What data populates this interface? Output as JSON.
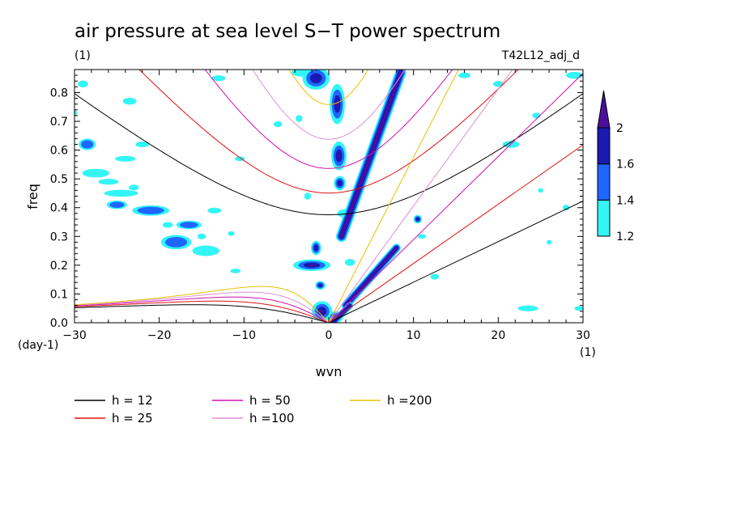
{
  "chart_data": {
    "type": "heatmap",
    "title": "air pressure at sea level S−T power spectrum",
    "subtitle_left": "(1)",
    "subtitle_right": "T42L12_adj_d",
    "xlabel": "wvn",
    "ylabel": "freq",
    "x_unit_label": "(1)",
    "y_unit_label": "(day-1)",
    "xlim": [
      -30,
      30
    ],
    "ylim": [
      0,
      0.88
    ],
    "x_ticks": [
      -30,
      -20,
      -10,
      0,
      10,
      20,
      30
    ],
    "x_tick_labels": [
      "−30",
      "−20",
      "−10",
      "0",
      "10",
      "20",
      "30"
    ],
    "y_ticks": [
      0,
      0.1,
      0.2,
      0.3,
      0.4,
      0.5,
      0.6,
      0.7,
      0.8
    ],
    "y_tick_labels": [
      "0.0",
      "0.1",
      "0.2",
      "0.3",
      "0.4",
      "0.5",
      "0.6",
      "0.7",
      "0.8"
    ],
    "colorbar": {
      "levels": [
        1.2,
        1.4,
        1.6,
        2
      ],
      "labels": [
        "1.2",
        "1.4",
        "1.6",
        "2"
      ],
      "colors": [
        "#33f5f5",
        "#1f66ff",
        "#1a1ab0",
        "#4a0e9e"
      ]
    },
    "series": [
      {
        "name": "h = 12",
        "h": 12,
        "color": "#000000"
      },
      {
        "name": "h = 25",
        "h": 25,
        "color": "#e01010"
      },
      {
        "name": "h = 50",
        "h": 50,
        "color": "#d010b0"
      },
      {
        "name": "h =100",
        "h": 100,
        "color": "#d890d8"
      },
      {
        "name": "h =200",
        "h": 200,
        "color": "#e8c000"
      }
    ],
    "kelvin_slopes": [
      0.0141,
      0.0206,
      0.0289,
      0.0406,
      0.0575
    ],
    "blobs": [
      {
        "x": -29,
        "y": 0.83,
        "rx": 0.6,
        "ry": 0.012,
        "level": 1
      },
      {
        "x": -30,
        "y": 0.73,
        "rx": 0.3,
        "ry": 0.01,
        "level": 1
      },
      {
        "x": -28.5,
        "y": 0.62,
        "rx": 1.0,
        "ry": 0.02,
        "level": 2
      },
      {
        "x": -27.5,
        "y": 0.52,
        "rx": 1.6,
        "ry": 0.015,
        "level": 1
      },
      {
        "x": -26,
        "y": 0.49,
        "rx": 1.2,
        "ry": 0.01,
        "level": 1
      },
      {
        "x": -24.5,
        "y": 0.45,
        "rx": 2.0,
        "ry": 0.012,
        "level": 1
      },
      {
        "x": -25,
        "y": 0.41,
        "rx": 1.2,
        "ry": 0.015,
        "level": 2
      },
      {
        "x": -24,
        "y": 0.57,
        "rx": 1.2,
        "ry": 0.01,
        "level": 1
      },
      {
        "x": -22,
        "y": 0.62,
        "rx": 0.8,
        "ry": 0.01,
        "level": 1
      },
      {
        "x": -23,
        "y": 0.47,
        "rx": 0.6,
        "ry": 0.01,
        "level": 1
      },
      {
        "x": -21,
        "y": 0.39,
        "rx": 2.2,
        "ry": 0.018,
        "level": 2
      },
      {
        "x": -23.5,
        "y": 0.77,
        "rx": 0.8,
        "ry": 0.012,
        "level": 1
      },
      {
        "x": -19,
        "y": 0.34,
        "rx": 0.6,
        "ry": 0.01,
        "level": 1
      },
      {
        "x": -18,
        "y": 0.28,
        "rx": 1.8,
        "ry": 0.025,
        "level": 2
      },
      {
        "x": -16.5,
        "y": 0.34,
        "rx": 1.5,
        "ry": 0.015,
        "level": 2
      },
      {
        "x": -15,
        "y": 0.3,
        "rx": 0.5,
        "ry": 0.01,
        "level": 1
      },
      {
        "x": -14.5,
        "y": 0.25,
        "rx": 1.6,
        "ry": 0.018,
        "level": 1
      },
      {
        "x": -13.5,
        "y": 0.39,
        "rx": 0.8,
        "ry": 0.01,
        "level": 1
      },
      {
        "x": -11,
        "y": 0.18,
        "rx": 0.6,
        "ry": 0.008,
        "level": 1
      },
      {
        "x": -10.5,
        "y": 0.57,
        "rx": 0.6,
        "ry": 0.008,
        "level": 1
      },
      {
        "x": -11.5,
        "y": 0.31,
        "rx": 0.4,
        "ry": 0.008,
        "level": 1
      },
      {
        "x": -13,
        "y": 0.85,
        "rx": 0.8,
        "ry": 0.01,
        "level": 1
      },
      {
        "x": -6,
        "y": 0.69,
        "rx": 0.5,
        "ry": 0.01,
        "level": 1
      },
      {
        "x": -3,
        "y": 0.87,
        "rx": 1.4,
        "ry": 0.015,
        "level": 1
      },
      {
        "x": -1.5,
        "y": 0.85,
        "rx": 1.6,
        "ry": 0.04,
        "level": 3
      },
      {
        "x": -3.5,
        "y": 0.71,
        "rx": 0.4,
        "ry": 0.012,
        "level": 1
      },
      {
        "x": 1,
        "y": 0.76,
        "rx": 0.9,
        "ry": 0.07,
        "level": 4
      },
      {
        "x": 1.2,
        "y": 0.58,
        "rx": 0.9,
        "ry": 0.05,
        "level": 4
      },
      {
        "x": 1.3,
        "y": 0.485,
        "rx": 0.7,
        "ry": 0.025,
        "level": 3
      },
      {
        "x": -2.5,
        "y": 0.44,
        "rx": 0.4,
        "ry": 0.012,
        "level": 1
      },
      {
        "x": -1.5,
        "y": 0.26,
        "rx": 0.6,
        "ry": 0.025,
        "level": 3
      },
      {
        "x": -2,
        "y": 0.2,
        "rx": 2.2,
        "ry": 0.02,
        "level": 4
      },
      {
        "x": -1,
        "y": 0.13,
        "rx": 0.6,
        "ry": 0.015,
        "level": 3
      },
      {
        "x": -0.8,
        "y": 0.04,
        "rx": 1.2,
        "ry": 0.035,
        "level": 4
      },
      {
        "x": 0.8,
        "y": 0.02,
        "rx": 0.9,
        "ry": 0.02,
        "level": 3
      },
      {
        "x": 2,
        "y": 0.38,
        "rx": 1.0,
        "ry": 0.015,
        "level": 1
      },
      {
        "x": 2.5,
        "y": 0.21,
        "rx": 0.6,
        "ry": 0.012,
        "level": 1
      },
      {
        "x": 10.5,
        "y": 0.36,
        "rx": 0.5,
        "ry": 0.015,
        "level": 3
      },
      {
        "x": 11,
        "y": 0.3,
        "rx": 0.5,
        "ry": 0.008,
        "level": 1
      },
      {
        "x": 12.5,
        "y": 0.16,
        "rx": 0.5,
        "ry": 0.01,
        "level": 1
      },
      {
        "x": 16,
        "y": 0.86,
        "rx": 0.7,
        "ry": 0.01,
        "level": 1
      },
      {
        "x": 20,
        "y": 0.83,
        "rx": 0.6,
        "ry": 0.01,
        "level": 1
      },
      {
        "x": 21.5,
        "y": 0.62,
        "rx": 1.0,
        "ry": 0.012,
        "level": 1
      },
      {
        "x": 24.5,
        "y": 0.72,
        "rx": 0.5,
        "ry": 0.01,
        "level": 1
      },
      {
        "x": 23.5,
        "y": 0.05,
        "rx": 1.2,
        "ry": 0.01,
        "level": 1
      },
      {
        "x": 26,
        "y": 0.28,
        "rx": 0.3,
        "ry": 0.008,
        "level": 1
      },
      {
        "x": 28,
        "y": 0.4,
        "rx": 0.4,
        "ry": 0.01,
        "level": 1
      },
      {
        "x": 29,
        "y": 0.86,
        "rx": 1.0,
        "ry": 0.012,
        "level": 1
      },
      {
        "x": 29.5,
        "y": 0.05,
        "rx": 0.5,
        "ry": 0.008,
        "level": 1
      },
      {
        "x": 25,
        "y": 0.46,
        "rx": 0.3,
        "ry": 0.008,
        "level": 1
      }
    ],
    "streaks": [
      {
        "x1": 1.5,
        "y1": 0.3,
        "x2": 8.5,
        "y2": 0.87,
        "w": 1.3,
        "level": 4
      },
      {
        "x1": 2.0,
        "y1": 0.06,
        "x2": 8.0,
        "y2": 0.26,
        "w": 1.0,
        "level": 4
      },
      {
        "x1": 0.5,
        "y1": 0.0,
        "x2": 2.5,
        "y2": 0.06,
        "w": 0.8,
        "level": 3
      }
    ]
  }
}
